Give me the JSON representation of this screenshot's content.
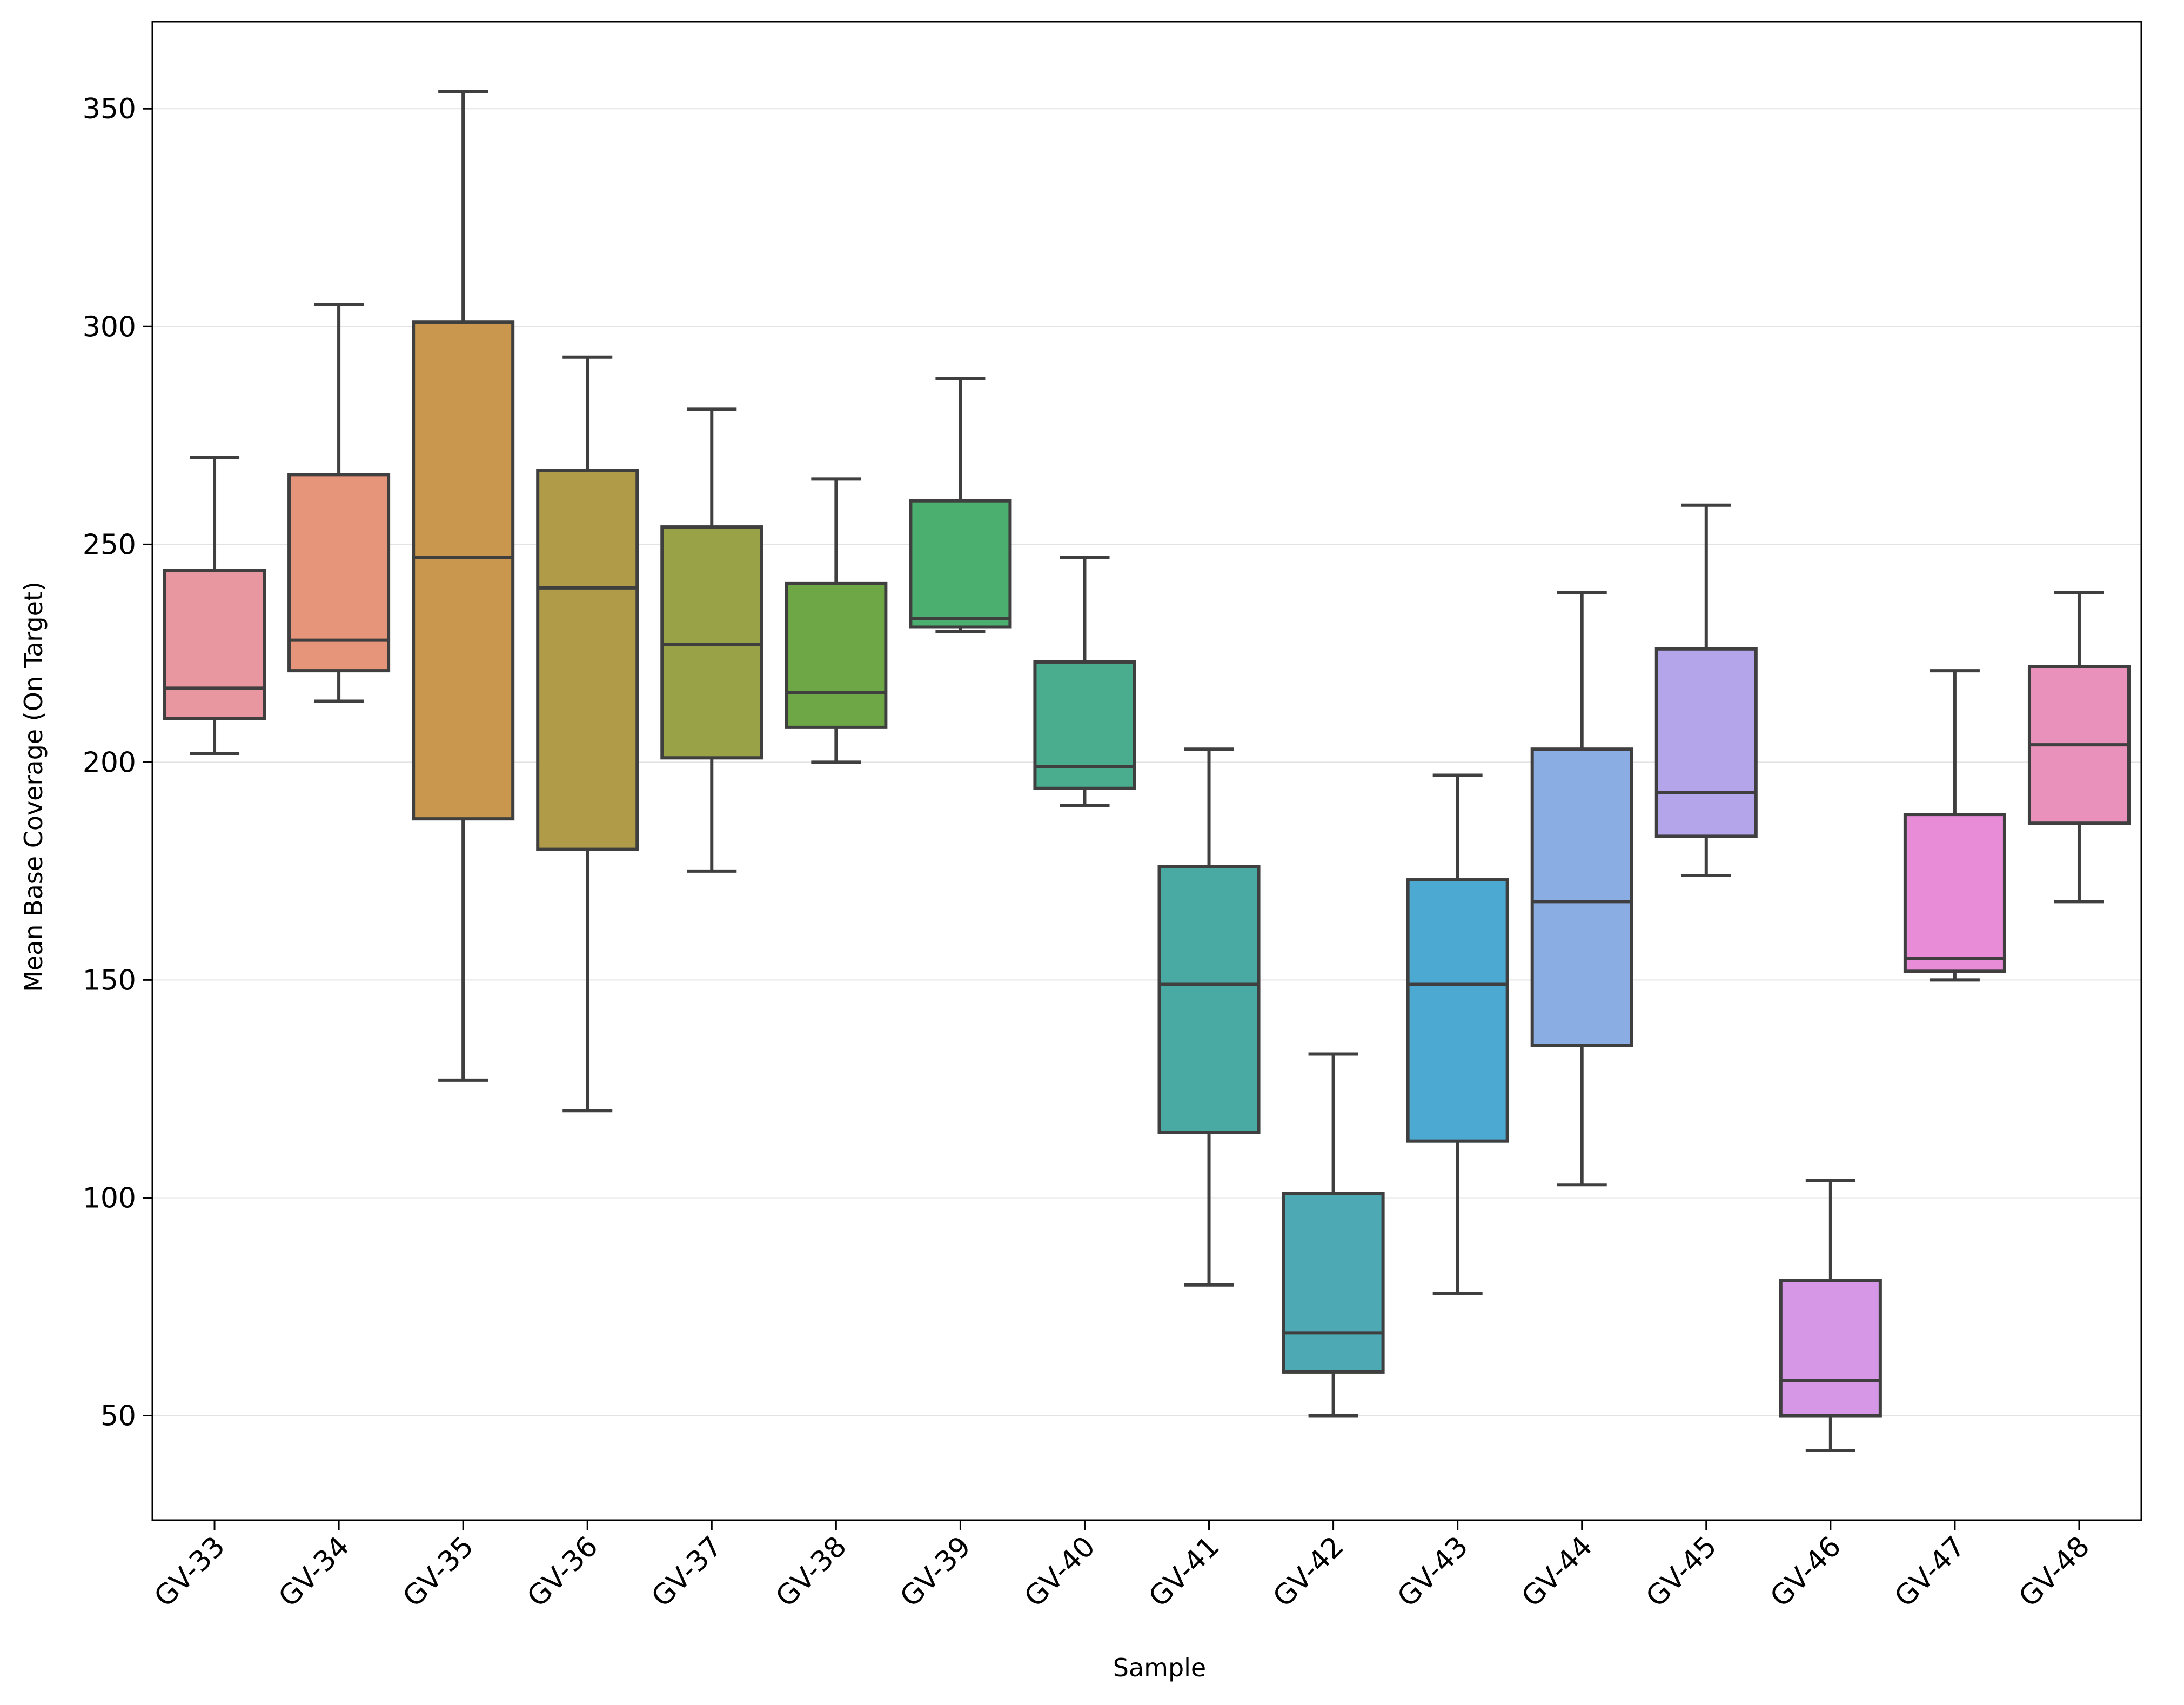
{
  "chart_data": {
    "type": "box",
    "xlabel": "Sample",
    "ylabel": "Mean Base Coverage (On Target)",
    "ylim": [
      26,
      370
    ],
    "yticks": [
      50,
      100,
      150,
      200,
      250,
      300,
      350
    ],
    "grid": "horizontal",
    "categories": [
      "GV-33",
      "GV-34",
      "GV-35",
      "GV-36",
      "GV-37",
      "GV-38",
      "GV-39",
      "GV-40",
      "GV-41",
      "GV-42",
      "GV-43",
      "GV-44",
      "GV-45",
      "GV-46",
      "GV-47",
      "GV-48"
    ],
    "boxes": [
      {
        "label": "GV-33",
        "whisker_low": 202,
        "q1": 210,
        "median": 217,
        "q3": 244,
        "whisker_high": 270,
        "color": "#e8969f"
      },
      {
        "label": "GV-34",
        "whisker_low": 214,
        "q1": 221,
        "median": 228,
        "q3": 266,
        "whisker_high": 305,
        "color": "#e6957a"
      },
      {
        "label": "GV-35",
        "whisker_low": 127,
        "q1": 187,
        "median": 247,
        "q3": 301,
        "whisker_high": 354,
        "color": "#c9974d"
      },
      {
        "label": "GV-36",
        "whisker_low": 120,
        "q1": 180,
        "median": 240,
        "q3": 267,
        "whisker_high": 293,
        "color": "#b09b48"
      },
      {
        "label": "GV-37",
        "whisker_low": 175,
        "q1": 201,
        "median": 227,
        "q3": 254,
        "whisker_high": 281,
        "color": "#99a246"
      },
      {
        "label": "GV-38",
        "whisker_low": 200,
        "q1": 208,
        "median": 216,
        "q3": 241,
        "whisker_high": 265,
        "color": "#6ea846"
      },
      {
        "label": "GV-39",
        "whisker_low": 230,
        "q1": 231,
        "median": 233,
        "q3": 260,
        "whisker_high": 288,
        "color": "#4baf6f"
      },
      {
        "label": "GV-40",
        "whisker_low": 190,
        "q1": 194,
        "median": 199,
        "q3": 223,
        "whisker_high": 247,
        "color": "#4aae8e"
      },
      {
        "label": "GV-41",
        "whisker_low": 80,
        "q1": 115,
        "median": 149,
        "q3": 176,
        "whisker_high": 203,
        "color": "#48aaa2"
      },
      {
        "label": "GV-42",
        "whisker_low": 50,
        "q1": 60,
        "median": 69,
        "q3": 101,
        "whisker_high": 133,
        "color": "#4daab5"
      },
      {
        "label": "GV-43",
        "whisker_low": 78,
        "q1": 113,
        "median": 149,
        "q3": 173,
        "whisker_high": 197,
        "color": "#4ca9d1"
      },
      {
        "label": "GV-44",
        "whisker_low": 103,
        "q1": 135,
        "median": 168,
        "q3": 203,
        "whisker_high": 239,
        "color": "#8aaee4"
      },
      {
        "label": "GV-45",
        "whisker_low": 174,
        "q1": 183,
        "median": 193,
        "q3": 226,
        "whisker_high": 259,
        "color": "#b4a4ea"
      },
      {
        "label": "GV-46",
        "whisker_low": 42,
        "q1": 50,
        "median": 58,
        "q3": 81,
        "whisker_high": 104,
        "color": "#d597e6"
      },
      {
        "label": "GV-47",
        "whisker_low": 150,
        "q1": 152,
        "median": 155,
        "q3": 188,
        "whisker_high": 221,
        "color": "#e88cd8"
      },
      {
        "label": "GV-48",
        "whisker_low": 168,
        "q1": 186,
        "median": 204,
        "q3": 222,
        "whisker_high": 239,
        "color": "#e991bb"
      }
    ]
  }
}
